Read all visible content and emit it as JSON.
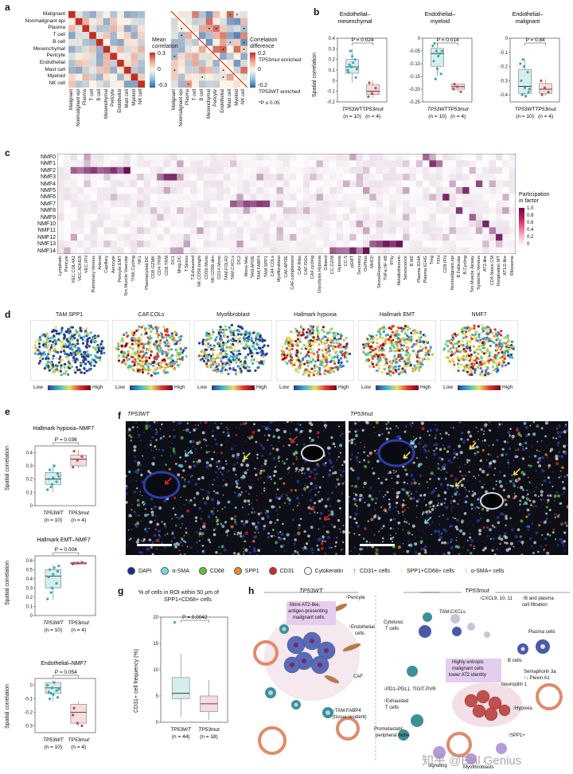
{
  "panels": {
    "a": "a",
    "b": "b",
    "c": "c",
    "d": "d",
    "e": "e",
    "f": "f",
    "g": "g",
    "h": "h"
  },
  "panel_a": {
    "rows": [
      "Malignant",
      "Nonmalignant epi",
      "Plasma",
      "T cell",
      "B cell",
      "Mesenchymal",
      "Pericyte",
      "Endothelial",
      "Mast cell",
      "Myeloid",
      "NK cell"
    ],
    "legend1_title_1": "Mean",
    "legend1_title_2": "correlation",
    "legend1_ticks": [
      "0.3",
      "0",
      "-0.3"
    ],
    "legend2_title_1": "Correlation",
    "legend2_title_2": "difference",
    "legend2_ticks": [
      "0.2",
      "0",
      "-0.2"
    ],
    "enriched_mut": "TP53mut enriched",
    "enriched_wt": "TP53WT enriched",
    "sig_note": "*P ≤ 0.05"
  },
  "panel_b": {
    "ylabel": "Spatial correlation",
    "plots": [
      {
        "title_1": "Endothelial–",
        "title_2": "mesenchymal",
        "p": "P = 0.024",
        "ticks": [
          "0.4",
          "0.3",
          "0.2",
          "0.1",
          "0",
          "-0.1",
          "-0.2"
        ]
      },
      {
        "title_1": "Endothelial–",
        "title_2": "myeloid",
        "p": "P = 0.014",
        "ticks": [
          "0",
          "-0.05",
          "-0.10",
          "-0.15",
          "-0.20",
          "-0.25"
        ]
      },
      {
        "title_1": "Endothelial–",
        "title_2": "malignant",
        "p": "P = 0.84",
        "ticks": [
          "0",
          "-0.1",
          "-0.2",
          "-0.3",
          "-0.4"
        ]
      }
    ],
    "group_wt": "TP53WT",
    "group_mut": "TP53mut",
    "n_wt": "(n = 10)",
    "n_mut": "(n = 4)"
  },
  "panel_c": {
    "factors": [
      "NMF0",
      "NMF1",
      "NMF2",
      "NMF3",
      "NMF4",
      "NMF5",
      "NMF6",
      "NMF7",
      "NMF8",
      "NMF9",
      "NMF10",
      "NMF11",
      "NMF12",
      "NMF13",
      "NMF14"
    ],
    "columns": [
      "Lymphatic",
      "Pericyte",
      "VEC.COL4A1",
      "VEC.ADH1B",
      "VEC.IFN",
      "Pulmonary.Venous",
      "Arterial",
      "Capillary",
      "Aerocyte",
      "Pericyte.EMT",
      "Sm.Muscle.Vascular",
      "T/NK.Cycling",
      "NK1",
      "Plasmacytoid.DC",
      "CD8.GZMK",
      "CD4.TRM",
      "CD8.TRM",
      "DC1",
      "Mreg.DC",
      "T.Stress",
      "T.Exhausted",
      "NK.CD56.bright",
      "CD56.Mono",
      "NK.CD56.dim",
      "CD14.Mono",
      "TAM.FOLR2",
      "TAM.CXCLs",
      "DC2",
      "Mono-Mac",
      "TAM.APOE",
      "TAM.FABP4",
      "TAM.SPP1",
      "CAF.COLs",
      "Myofibroblast",
      "CAF.APOE",
      "CAF.complement",
      "CAF.Ribo",
      "CAF.ISGs",
      "CAF.cycling",
      "Glycolysis.Hypoxia",
      "Ciliated",
      "CC.G2/M",
      "Hypoxia",
      "CC.S",
      "pEMT",
      "Secretory",
      "OxPhos",
      "MHCII",
      "StressResponse",
      "TNFa.NF-kB",
      "IFNy",
      "Metallothionein",
      "Senescence",
      "B.MZ",
      "Plasma.IGHA",
      "Plasma.IGHG",
      "Treg",
      "TFH",
      "CD8.IFN",
      "Nonmalignant.epi",
      "B.Follicular",
      "B.Cycling",
      "Sm.Muscle.Airway",
      "Systemic.Venous",
      "AT2-like",
      "CD4.Naive.CM",
      "Respiration.MT",
      "AT1/2-like",
      "Ribosome"
    ],
    "legend_title_1": "Participation",
    "legend_title_2": "in factor",
    "legend_ticks": [
      "1.0",
      "0.8",
      "0.6",
      "0.4",
      "0.2",
      "0"
    ]
  },
  "panel_d": {
    "maps": [
      "TAM.SPP1",
      "CAF.COLs",
      "Myofibroblast",
      "Hallmark hypoxia",
      "Hallmark EMT",
      "NMF7"
    ],
    "low": "Low",
    "high": "High"
  },
  "panel_e": {
    "ylabel": "Spatial correlation",
    "plots": [
      {
        "title": "Hallmark hypoxia–NMF7",
        "p": "P = 0.036",
        "ticks": [
          "0.4",
          "0.3",
          "0.2",
          "0.1",
          "0"
        ]
      },
      {
        "title": "Hallmark EMT–NMF7",
        "p": "P = 0.004",
        "ticks": [
          "0.6",
          "0.5",
          "0.4",
          "0.3",
          "0.2",
          "0.1",
          "0"
        ]
      },
      {
        "title": "Endothelial–NMF7",
        "p": "P = 0.054",
        "ticks": [
          "0",
          "-0.1",
          "-0.2",
          "-0.3"
        ]
      }
    ],
    "group_wt": "TP53WT",
    "group_mut": "TP53mut",
    "n_wt": "(n = 10)",
    "n_mut": "(n = 4)"
  },
  "panel_f": {
    "title_wt": "TP53WT",
    "title_mut": "TP53mut",
    "legend": [
      {
        "label": "DAPI",
        "color": "#1b2a8c"
      },
      {
        "label": "α-SMA",
        "color": "#6fd9e6"
      },
      {
        "label": "CD68",
        "color": "#5fbf3a"
      },
      {
        "label": "SPP1",
        "color": "#e58a2a"
      },
      {
        "label": "CD31",
        "color": "#d8242a"
      },
      {
        "label": "Cytokeratin",
        "color": "#ffffff"
      }
    ],
    "arrows": [
      {
        "label": "CD31+ cells",
        "color": "#d8242a"
      },
      {
        "label": "SPP1+CD68+ cells",
        "color": "#f0e04a"
      },
      {
        "label": "α-SMA+ cells",
        "color": "#6fd9e6"
      }
    ]
  },
  "panel_g": {
    "title_1": "% of cells in ROI within 50 μm of",
    "title_2": "SPP1+CD68+ cells",
    "p": "P = 0.0042",
    "ylabel": "CD31+ cell frequency (%)",
    "ticks": [
      "20",
      "15",
      "10",
      "5",
      "0"
    ],
    "group_wt": "TP53WT",
    "group_mut": "TP53mut",
    "n_wt": "(n = 44)",
    "n_mut": "(n = 18)"
  },
  "panel_h": {
    "title_wt": "TP53WT",
    "title_mut": "TP53mut",
    "wt_box_1": "More AT2-like,",
    "wt_box_2": "antigen-presenting",
    "wt_box_3": "malignant cells",
    "wt_pericyte": "↑Pericyte",
    "wt_endo_1": "↑Endothelial",
    "wt_endo_2": "cells",
    "wt_caf": "CAF",
    "wt_tam_1": "↑TAM.FABP4",
    "wt_tam_2": "(tissue resident)",
    "mut_cytotoxic_1": "Cytotoxic",
    "mut_cytotoxic_2": "T cells",
    "mut_tam": "TAM.CXCLs",
    "mut_cxcl": "↑CXCL9, 10, 11",
    "mut_bplasma_1": "↑B and plasma",
    "mut_bplasma_2": "cell filtration",
    "mut_plasma": "Plasma cells",
    "mut_bcells": "B cells",
    "mut_box_1": "Highly entropic",
    "mut_box_2": "malignant cells",
    "mut_box_3": "lower AT2 identity",
    "mut_sema_1": "Semaphorin 3a",
    "mut_sema_2": "↑↓ Plexin A1",
    "mut_neuropilin": "Neuropilin 1",
    "mut_pdl1": "↑PD1–PDL1, TIGIT-PVR",
    "mut_exh_1": "↑Exhausted",
    "mut_exh_2": "T cells",
    "mut_hypoxia": "↑Hypoxia",
    "mut_niche_1": "Prometastatic",
    "mut_niche_2": "peripheral niche",
    "mut_spp1": "↑SPP1+",
    "mut_signaling": "signaling",
    "mut_myo": "Myofibroblasts",
    "watermark": "知乎 @Evil Genius"
  },
  "colors": {
    "accent": "#d7307a",
    "box_teal": "#3aa7a9",
    "box_red": "#c8464e",
    "pink_bg": "#f7d7e4"
  }
}
